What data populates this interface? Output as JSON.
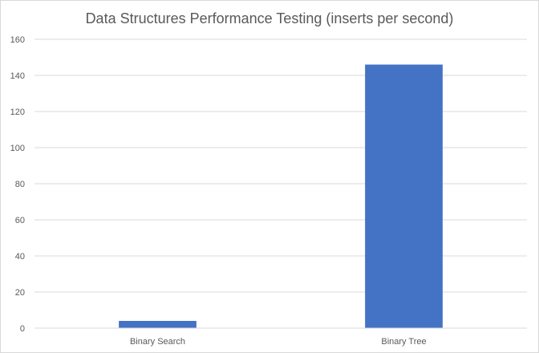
{
  "chart_data": {
    "type": "bar",
    "title": "Data Structures Performance Testing (inserts per second)",
    "xlabel": "",
    "ylabel": "",
    "categories": [
      "Binary Search",
      "Binary Tree"
    ],
    "values": [
      4,
      146
    ],
    "ylim": [
      0,
      160
    ],
    "yticks": [
      "0",
      "20",
      "40",
      "60",
      "80",
      "100",
      "120",
      "140",
      "160"
    ],
    "grid": true,
    "legend": "none",
    "colors": {
      "bar": "#4472C4",
      "grid": "#D9D9D9",
      "text": "#595959"
    }
  }
}
